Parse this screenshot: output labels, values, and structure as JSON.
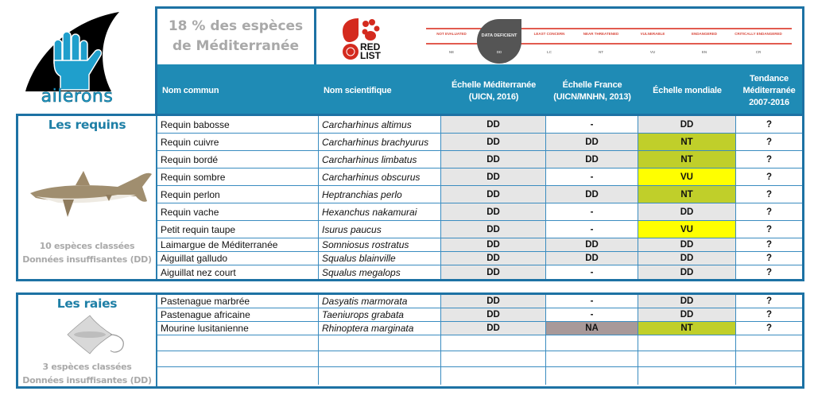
{
  "logo": {
    "name": "ailerons",
    "accent": "#1f9fcc"
  },
  "header": {
    "stat_line1": "18 % des espèces",
    "stat_line2": "de Méditerranée",
    "redlist": {
      "logo_line1": "RED",
      "logo_line2": "LIST",
      "categories": [
        {
          "label": "NOT EVALUATED",
          "code": "NE"
        },
        {
          "label": "DATA DEFICIENT",
          "code": "DD",
          "highlighted": true
        },
        {
          "label": "LEAST CONCERN",
          "code": "LC"
        },
        {
          "label": "NEAR THREATENED",
          "code": "NT"
        },
        {
          "label": "VULNERABLE",
          "code": "VU"
        },
        {
          "label": "ENDANGERED",
          "code": "EN"
        },
        {
          "label": "CRITICALLY ENDANGERED",
          "code": "CR"
        }
      ]
    },
    "columns": {
      "common": "Nom commun",
      "scientific": "Nom scientifique",
      "med_1": "Échelle Méditerranée",
      "med_2": "(UICN, 2016)",
      "fr_1": "Échelle France",
      "fr_2": "(UICN/MNHN, 2013)",
      "world": "Échelle mondiale",
      "trend_1": "Tendance",
      "trend_2": "Méditerranée",
      "trend_3": "2007-2016"
    }
  },
  "colors": {
    "border": "#1d72a4",
    "header_bg": "#1f8bb5",
    "title": "#1e7fa6",
    "DD": "#e6e6e6",
    "NT": "#c0cf2a",
    "VU": "#ffff00",
    "NA": "#a89999"
  },
  "sharks": {
    "title": "Les requins",
    "note_1": "10 espèces classées",
    "note_2": "Données insuffisantes (DD)",
    "rows": [
      {
        "common": "Requin babosse",
        "scientific": "Carcharhinus altimus",
        "med": "DD",
        "fr": "-",
        "world": "DD",
        "trend": "?"
      },
      {
        "common": "Requin cuivre",
        "scientific": "Carcharhinus brachyurus",
        "med": "DD",
        "fr": "DD",
        "world": "NT",
        "trend": "?"
      },
      {
        "common": "Requin bordé",
        "scientific": "Carcharhinus limbatus",
        "med": "DD",
        "fr": "DD",
        "world": "NT",
        "trend": "?"
      },
      {
        "common": "Requin sombre",
        "scientific": "Carcharhinus obscurus",
        "med": "DD",
        "fr": "-",
        "world": "VU",
        "trend": "?"
      },
      {
        "common": "Requin perlon",
        "scientific": "Heptranchias perlo",
        "med": "DD",
        "fr": "DD",
        "world": "NT",
        "trend": "?"
      },
      {
        "common": "Requin vache",
        "scientific": "Hexanchus nakamurai",
        "med": "DD",
        "fr": "-",
        "world": "DD",
        "trend": "?"
      },
      {
        "common": "Petit requin taupe",
        "scientific": "Isurus paucus",
        "med": "DD",
        "fr": "-",
        "world": "VU",
        "trend": "?"
      },
      {
        "common": "Laimargue de Méditerranée",
        "scientific": "Somniosus rostratus",
        "med": "DD",
        "fr": "DD",
        "world": "DD",
        "trend": "?"
      },
      {
        "common": "Aiguillat galludo",
        "scientific": "Squalus blainville",
        "med": "DD",
        "fr": "DD",
        "world": "DD",
        "trend": "?"
      },
      {
        "common": "Aiguillat nez court",
        "scientific": "Squalus megalops",
        "med": "DD",
        "fr": "-",
        "world": "DD",
        "trend": "?"
      }
    ]
  },
  "rays": {
    "title": "Les raies",
    "note_1": "3 espèces classées",
    "note_2": "Données insuffisantes (DD)",
    "rows": [
      {
        "common": "Pastenague marbrée",
        "scientific": "Dasyatis  marmorata",
        "med": "DD",
        "fr": "-",
        "world": "DD",
        "trend": "?"
      },
      {
        "common": "Pastenague africaine",
        "scientific": "Taeniurops grabata",
        "med": "DD",
        "fr": "-",
        "world": "DD",
        "trend": "?"
      },
      {
        "common": "Mourine lusitanienne",
        "scientific": "Rhinoptera marginata",
        "med": "DD",
        "fr": "NA",
        "world": "NT",
        "trend": "?"
      },
      {
        "common": "",
        "scientific": "",
        "med": "",
        "fr": "",
        "world": "",
        "trend": ""
      },
      {
        "common": "",
        "scientific": "",
        "med": "",
        "fr": "",
        "world": "",
        "trend": ""
      },
      {
        "common": "",
        "scientific": "",
        "med": "",
        "fr": "",
        "world": "",
        "trend": ""
      }
    ]
  }
}
